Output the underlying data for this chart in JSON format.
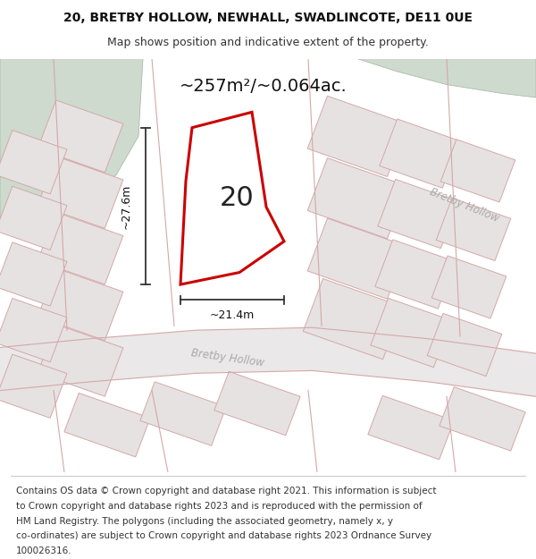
{
  "title_line1": "20, BRETBY HOLLOW, NEWHALL, SWADLINCOTE, DE11 0UE",
  "title_line2": "Map shows position and indicative extent of the property.",
  "area_label": "~257m²/~0.064ac.",
  "property_number": "20",
  "width_label": "~21.4m",
  "height_label": "~27.6m",
  "street_label1": "Bretby Hollow",
  "street_label2": "Bretby Hollow",
  "footer_lines": [
    "Contains OS data © Crown copyright and database right 2021. This information is subject",
    "to Crown copyright and database rights 2023 and is reproduced with the permission of",
    "HM Land Registry. The polygons (including the associated geometry, namely x, y",
    "co-ordinates) are subject to Crown copyright and database rights 2023 Ordnance Survey",
    "100026316."
  ],
  "bg_color": "#ffffff",
  "map_bg": "#f0eeee",
  "green_area_color": "#cddacd",
  "plot_outline_color": "#cc0000",
  "plot_fill_color": "#ffffff",
  "road_line_color": "#d4a8a8",
  "neighbor_fill": "#e6e2e2",
  "neighbor_edge": "#d4a8a8",
  "dim_line_color": "#333333",
  "title_fontsize": 10,
  "subtitle_fontsize": 9,
  "footer_fontsize": 7.5
}
